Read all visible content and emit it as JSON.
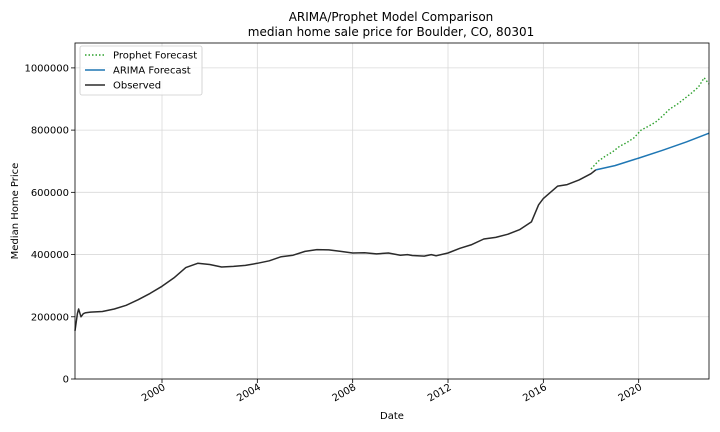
{
  "chart_data": {
    "type": "line",
    "title": "ARIMA/Prophet Model Comparison",
    "subtitle": "median home sale price for Boulder, CO, 80301",
    "xlabel": "Date",
    "ylabel": "Median Home Price",
    "xlim": [
      1996.35,
      2022.95
    ],
    "ylim": [
      0,
      1080000
    ],
    "grid": true,
    "legend_position": "top-left",
    "x_ticks": [
      2000,
      2004,
      2008,
      2012,
      2016,
      2020
    ],
    "x_tick_labels": [
      "2000",
      "2004",
      "2008",
      "2012",
      "2016",
      "2020"
    ],
    "y_ticks": [
      0,
      200000,
      400000,
      600000,
      800000,
      1000000
    ],
    "y_tick_labels": [
      "0",
      "200000",
      "400000",
      "600000",
      "800000",
      "1000000"
    ],
    "series": [
      {
        "name": "Prophet Forecast",
        "color": "#2ca02c",
        "style": "dotted",
        "x": [
          2018.0,
          2018.3,
          2018.6,
          2018.9,
          2019.2,
          2019.5,
          2019.8,
          2020.1,
          2020.4,
          2020.7,
          2021.0,
          2021.3,
          2021.6,
          2021.9,
          2022.2,
          2022.5,
          2022.75,
          2022.95
        ],
        "y": [
          675000,
          700000,
          716000,
          730000,
          748000,
          760000,
          775000,
          800000,
          812000,
          825000,
          845000,
          868000,
          882000,
          900000,
          918000,
          938000,
          968000,
          948000
        ]
      },
      {
        "name": "ARIMA Forecast",
        "color": "#1f77b4",
        "style": "solid",
        "x": [
          2018.2,
          2019.0,
          2020.0,
          2021.0,
          2022.0,
          2022.95
        ],
        "y": [
          672000,
          686000,
          710000,
          735000,
          762000,
          790000
        ]
      },
      {
        "name": "Observed",
        "color": "#2b2b2b",
        "style": "solid",
        "x": [
          1996.35,
          1996.45,
          1996.5,
          1996.6,
          1996.7,
          1996.8,
          1997.0,
          1997.5,
          1998.0,
          1998.5,
          1999.0,
          1999.5,
          2000.0,
          2000.5,
          2001.0,
          2001.5,
          2002.0,
          2002.5,
          2003.0,
          2003.5,
          2004.0,
          2004.5,
          2005.0,
          2005.5,
          2006.0,
          2006.5,
          2007.0,
          2007.5,
          2008.0,
          2008.5,
          2009.0,
          2009.5,
          2010.0,
          2010.3,
          2010.5,
          2011.0,
          2011.3,
          2011.5,
          2012.0,
          2012.5,
          2013.0,
          2013.5,
          2014.0,
          2014.5,
          2015.0,
          2015.5,
          2015.8,
          2016.0,
          2016.3,
          2016.6,
          2017.0,
          2017.5,
          2018.0,
          2018.2
        ],
        "y": [
          155000,
          210000,
          225000,
          200000,
          210000,
          213000,
          215000,
          217000,
          225000,
          237000,
          255000,
          275000,
          298000,
          325000,
          358000,
          372000,
          368000,
          360000,
          362000,
          365000,
          372000,
          380000,
          393000,
          398000,
          410000,
          416000,
          415000,
          410000,
          405000,
          406000,
          402000,
          405000,
          398000,
          400000,
          397000,
          395000,
          400000,
          396000,
          405000,
          420000,
          432000,
          450000,
          455000,
          465000,
          480000,
          505000,
          560000,
          580000,
          600000,
          620000,
          625000,
          640000,
          660000,
          672000
        ]
      }
    ]
  }
}
